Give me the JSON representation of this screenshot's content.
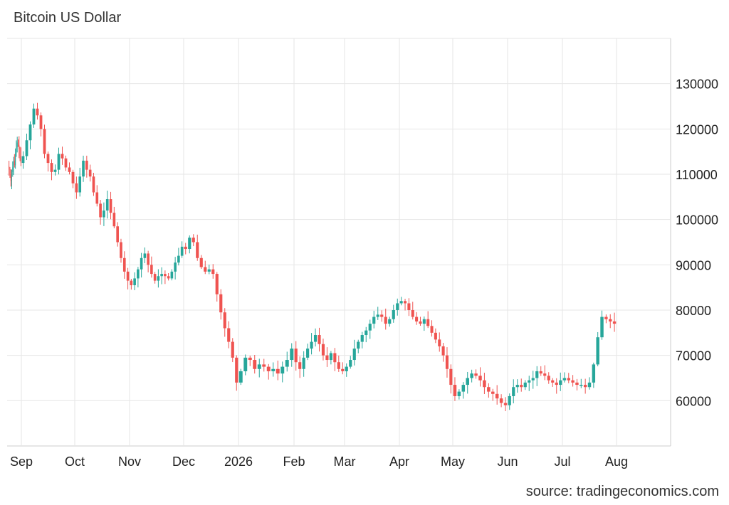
{
  "title": "Bitcoin US Dollar",
  "source": "source: tradingeconomics.com",
  "chart_data": {
    "type": "candlestick",
    "title": "Bitcoin US Dollar",
    "ylabel": "",
    "xlabel": "",
    "ylim": [
      50000,
      140000
    ],
    "y_ticks": [
      60000,
      70000,
      80000,
      90000,
      100000,
      110000,
      120000,
      130000
    ],
    "x_ticks": [
      "Sep",
      "Oct",
      "Nov",
      "Dec",
      "2026",
      "Feb",
      "Mar",
      "Apr",
      "May",
      "Jun",
      "Jul",
      "Aug"
    ],
    "grid": true,
    "colors": {
      "up": "#26a69a",
      "down": "#ef5350",
      "grid": "#e6e6e6"
    },
    "series": [
      {
        "month": "Sep",
        "close": [
          111000,
          110000,
          108500,
          110500,
          111500,
          113000,
          112000,
          114500,
          116000,
          117000,
          116500,
          115500,
          114000,
          112500
        ]
      },
      {
        "month": "Oct",
        "close": [
          114000,
          117500,
          121000,
          124500,
          123000,
          120000,
          114500,
          112500,
          110500,
          111000,
          114500,
          113500,
          111500,
          110500,
          108000
        ]
      },
      {
        "month": "Nov",
        "close": [
          106000,
          109500,
          113000,
          111000,
          109500,
          106000,
          103500,
          100500,
          102000,
          104500,
          101500,
          98500,
          95000,
          91500,
          88500,
          86500
        ]
      },
      {
        "month": "Dec",
        "close": [
          85500,
          87000,
          89000,
          91500,
          92500,
          90000,
          88000,
          86500,
          87500,
          88000,
          87500,
          87000,
          88500,
          90500,
          92000,
          94000
        ]
      },
      {
        "month": "Jan",
        "close": [
          93500,
          96000,
          95000,
          91500,
          89500,
          88500,
          89000,
          88000,
          83500,
          79500,
          76000,
          73000,
          69500,
          64000
        ]
      },
      {
        "month": "Feb",
        "close": [
          66500,
          69500,
          69000,
          67000,
          68000,
          67500,
          66500,
          67000,
          66000,
          67500,
          69000,
          71500
        ]
      },
      {
        "month": "Mar",
        "close": [
          68500,
          67000,
          69500,
          71500,
          73000,
          74500,
          72500,
          70000,
          69000,
          70500,
          68500,
          67000,
          66500
        ]
      },
      {
        "month": "Apr",
        "close": [
          67500,
          69000,
          71500,
          73000,
          74500,
          75500,
          77000,
          78500,
          79000,
          78500,
          77000,
          78000,
          80000,
          81500
        ]
      },
      {
        "month": "May",
        "close": [
          82000,
          81500,
          80000,
          78500,
          77500,
          77000,
          78000,
          76500,
          75000,
          73500,
          72000,
          70000,
          67000,
          63500
        ]
      },
      {
        "month": "Jun",
        "close": [
          61000,
          62000,
          63500,
          65000,
          66000,
          65500,
          64500,
          63000,
          62000,
          61500,
          60500,
          59500,
          59000
        ]
      },
      {
        "month": "Jul",
        "close": [
          61000,
          63000,
          63500,
          63000,
          64000,
          64500,
          65000,
          66500,
          66000,
          65500,
          64500,
          64000,
          63500,
          64500
        ]
      },
      {
        "month": "Aug",
        "close": [
          65000,
          64500,
          64000,
          63500,
          63500,
          63000,
          64000,
          68000,
          74000,
          78500,
          78000,
          77500,
          77000
        ]
      }
    ]
  }
}
